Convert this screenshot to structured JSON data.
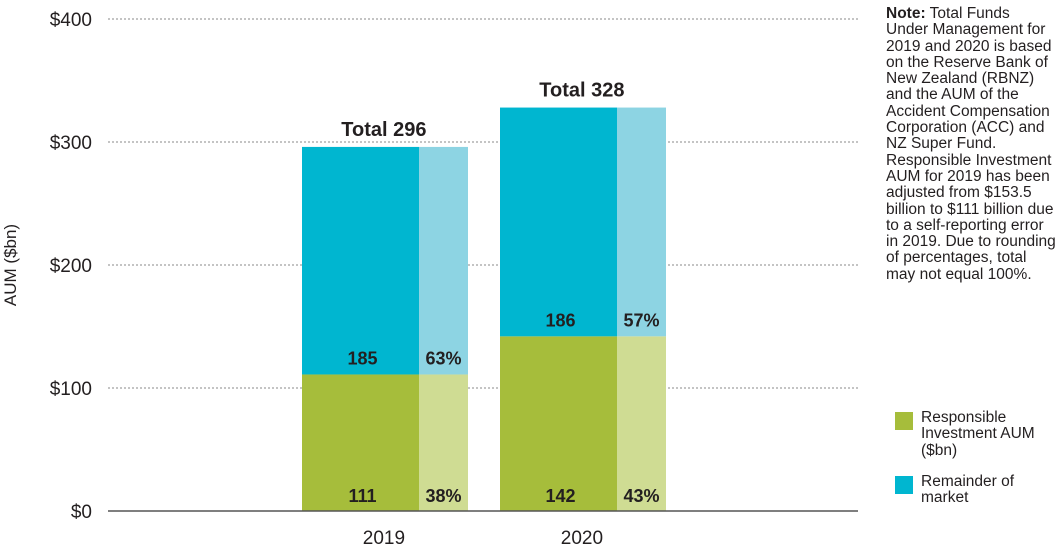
{
  "chart_data": {
    "type": "bar",
    "stacked": true,
    "categories": [
      "2019",
      "2020"
    ],
    "ylabel": "AUM ($bn)",
    "ylim": [
      0,
      400
    ],
    "yticks": [
      "$0",
      "$100",
      "$200",
      "$300",
      "$400"
    ],
    "grid": true,
    "series": [
      {
        "name": "Responsible Investment AUM ($bn)",
        "values": [
          111,
          142
        ],
        "labels": [
          "111",
          "142"
        ],
        "pct_labels": [
          "38%",
          "43%"
        ],
        "color": "#a6bd3b",
        "pct_color": "#cfdc93"
      },
      {
        "name": "Remainder of market",
        "values": [
          185,
          186
        ],
        "labels": [
          "185",
          "186"
        ],
        "pct_labels": [
          "63%",
          "57%"
        ],
        "color": "#00b6d0",
        "pct_color": "#8dd4e3"
      }
    ],
    "totals": [
      "Total 296",
      "Total 328"
    ],
    "legend_position": "right"
  },
  "note": {
    "label": "Note:",
    "text": "Total Funds Under Management for 2019 and 2020 is based on the Reserve Bank of New Zealand (RBNZ) and the AUM of the Accident Compensation Corporation (ACC) and NZ Super Fund. Responsible Investment AUM for 2019 has been adjusted from $153.5 billion to $111 billion due to a self-reporting error in 2019. Due to rounding of percentages, total may not equal 100%."
  },
  "legend": [
    {
      "label": "Responsible Investment AUM ($bn)",
      "color": "#a6bd3b"
    },
    {
      "label": "Remainder of market",
      "color": "#00b6d0"
    }
  ]
}
